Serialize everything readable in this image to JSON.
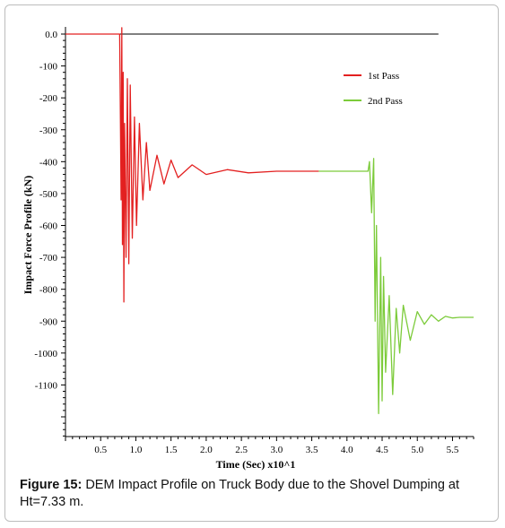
{
  "chart_data": {
    "type": "line",
    "xlabel": "Time (Sec) x10^1",
    "ylabel": "Impact Force Profile (kN)",
    "xlim": [
      0,
      5.8
    ],
    "ylim": [
      -1200,
      0
    ],
    "x_ticks": [
      "0.5",
      "1.0",
      "1.5",
      "2.0",
      "2.5",
      "3.0",
      "3.5",
      "4.0",
      "4.5",
      "5.0",
      "5.5"
    ],
    "y_ticks": [
      "0.0",
      "-100",
      "-200",
      "-300",
      "-400",
      "-500",
      "-600",
      "-700",
      "-800",
      "-900",
      "-1000",
      "-1100"
    ],
    "legend_position": "top-right",
    "reference_line": {
      "y": 0,
      "x_start": 0,
      "x_end": 5.3
    },
    "series": [
      {
        "name": "1st Pass",
        "color": "#e32020",
        "x": [
          0,
          0.77,
          0.78,
          0.79,
          0.8,
          0.81,
          0.82,
          0.83,
          0.84,
          0.86,
          0.88,
          0.9,
          0.92,
          0.95,
          0.98,
          1.01,
          1.05,
          1.1,
          1.15,
          1.2,
          1.3,
          1.4,
          1.5,
          1.6,
          1.8,
          2.0,
          2.3,
          2.6,
          3.0,
          3.4,
          3.6
        ],
        "y": [
          0,
          0,
          -250,
          -520,
          20,
          -660,
          -120,
          -840,
          -280,
          -700,
          -140,
          -720,
          -160,
          -640,
          -260,
          -600,
          -280,
          -520,
          -340,
          -490,
          -380,
          -470,
          -395,
          -450,
          -410,
          -440,
          -425,
          -435,
          -430,
          -430,
          -430
        ]
      },
      {
        "name": "2nd Pass",
        "color": "#7ccb3a",
        "x": [
          3.6,
          4.0,
          4.3,
          4.32,
          4.35,
          4.38,
          4.4,
          4.42,
          4.45,
          4.48,
          4.5,
          4.52,
          4.55,
          4.6,
          4.65,
          4.7,
          4.75,
          4.8,
          4.9,
          5.0,
          5.1,
          5.2,
          5.3,
          5.4,
          5.5,
          5.6,
          5.8
        ],
        "y": [
          -430,
          -430,
          -430,
          -400,
          -560,
          -390,
          -900,
          -600,
          -1190,
          -700,
          -1150,
          -760,
          -1060,
          -820,
          -1130,
          -860,
          -1000,
          -850,
          -960,
          -870,
          -910,
          -880,
          -900,
          -885,
          -890,
          -888,
          -888
        ]
      }
    ]
  },
  "caption": {
    "label": "Figure 15:",
    "text": " DEM Impact Profile on Truck Body due to the Shovel Dumping at Ht=7.33 m."
  }
}
